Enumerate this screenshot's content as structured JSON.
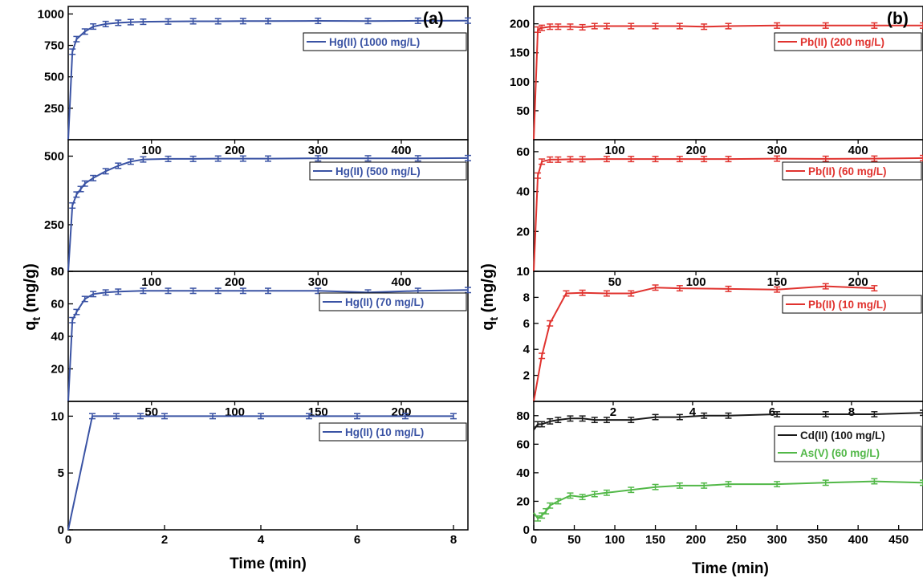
{
  "panels": [
    {
      "label": "(a)",
      "ylabel": "q",
      "ylabel_sub": "t",
      "ylabel_unit": " (mg/g)",
      "xlabel": "Time (min)"
    },
    {
      "label": "(b)",
      "ylabel": "q",
      "ylabel_sub": "t",
      "ylabel_unit": " (mg/g)",
      "xlabel": "Time (min)"
    }
  ],
  "chart_data": [
    {
      "type": "line",
      "panel": "a",
      "row": 1,
      "xlim": [
        0,
        480
      ],
      "ylim": [
        0,
        1060
      ],
      "yticks": [
        250,
        500,
        750,
        1000
      ],
      "xticks_top": [],
      "series": [
        {
          "name": "Hg(II) (1000 mg/L)",
          "color": "#3a53a4",
          "x": [
            0,
            5,
            10,
            20,
            30,
            45,
            60,
            75,
            90,
            120,
            150,
            180,
            210,
            240,
            300,
            360,
            420,
            480
          ],
          "y": [
            0,
            700,
            800,
            860,
            900,
            920,
            930,
            935,
            938,
            940,
            942,
            942,
            943,
            943,
            945,
            944,
            946,
            947
          ]
        }
      ]
    },
    {
      "type": "line",
      "panel": "a",
      "row": 2,
      "xlim": [
        0,
        480
      ],
      "ylim": [
        80,
        560
      ],
      "yticks": [
        80,
        250,
        500
      ],
      "xticks_top": [
        100,
        200,
        300,
        400
      ],
      "series": [
        {
          "name": "Hg(II) (500 mg/L)",
          "color": "#3a53a4",
          "x": [
            0,
            5,
            10,
            15,
            20,
            30,
            45,
            60,
            75,
            90,
            120,
            150,
            180,
            210,
            240,
            300,
            360,
            420,
            480
          ],
          "y": [
            80,
            320,
            360,
            380,
            400,
            420,
            445,
            465,
            480,
            488,
            490,
            490,
            491,
            491,
            491,
            492,
            492,
            492,
            493
          ]
        }
      ]
    },
    {
      "type": "line",
      "panel": "a",
      "row": 3,
      "xlim": [
        0,
        480
      ],
      "ylim": [
        0,
        80
      ],
      "yticks": [
        20,
        40,
        60,
        80
      ],
      "xticks_top": [
        100,
        200,
        300,
        400
      ],
      "series": [
        {
          "name": "Hg(II) (70 mg/L)",
          "color": "#3a53a4",
          "x": [
            0,
            5,
            10,
            20,
            30,
            45,
            60,
            90,
            120,
            150,
            180,
            210,
            240,
            300,
            360,
            420,
            480
          ],
          "y": [
            0,
            50,
            55,
            63,
            66,
            67,
            67.5,
            68,
            68,
            68,
            68,
            68,
            68,
            68,
            67,
            68,
            68.5
          ]
        }
      ]
    },
    {
      "type": "line",
      "panel": "a",
      "row": 4,
      "xlim": [
        0,
        8.3
      ],
      "ylim": [
        0,
        11.3
      ],
      "yticks": [
        0,
        5,
        10
      ],
      "xticks": [
        0,
        2,
        4,
        6,
        8
      ],
      "xticks_top": [
        50,
        100,
        150,
        200
      ],
      "xticks_top_max": 240,
      "series": [
        {
          "name": "Hg(II) (10 mg/L)",
          "color": "#3a53a4",
          "x": [
            0,
            0.5,
            1,
            1.5,
            2,
            3,
            4,
            5,
            6,
            7,
            8
          ],
          "y": [
            0,
            10,
            10,
            10,
            10,
            10,
            10,
            10,
            10,
            10,
            10
          ]
        }
      ]
    },
    {
      "type": "line",
      "panel": "b",
      "row": 1,
      "xlim": [
        0,
        480
      ],
      "ylim": [
        0,
        230
      ],
      "yticks": [
        50,
        100,
        150,
        200
      ],
      "xticks_top": [],
      "series": [
        {
          "name": "Pb(II) (200 mg/L)",
          "color": "#e0332f",
          "x": [
            0,
            5,
            10,
            20,
            30,
            45,
            60,
            75,
            90,
            120,
            150,
            180,
            210,
            240,
            300,
            360,
            420,
            480
          ],
          "y": [
            0,
            190,
            193,
            195,
            195,
            195,
            194,
            196,
            196,
            196,
            196,
            196,
            195,
            196,
            197,
            197,
            197,
            197
          ]
        }
      ]
    },
    {
      "type": "line",
      "panel": "b",
      "row": 2,
      "xlim": [
        0,
        480
      ],
      "ylim": [
        0,
        66
      ],
      "yticks": [
        20,
        40,
        60
      ],
      "xticks_top": [
        100,
        200,
        300,
        400
      ],
      "series": [
        {
          "name": "Pb(II) (60 mg/L)",
          "color": "#e0332f",
          "x": [
            0,
            5,
            10,
            20,
            30,
            45,
            60,
            90,
            120,
            150,
            180,
            210,
            240,
            300,
            360,
            420,
            480
          ],
          "y": [
            0,
            48,
            55,
            56,
            56,
            56.2,
            56.2,
            56.3,
            56.3,
            56.3,
            56.3,
            56.3,
            56.3,
            56.5,
            56.4,
            56.5,
            56.8
          ]
        }
      ]
    },
    {
      "type": "line",
      "panel": "b",
      "row": 3,
      "xlim": [
        0,
        240
      ],
      "ylim": [
        0,
        10
      ],
      "yticks": [
        2,
        4,
        6,
        8,
        10
      ],
      "xticks_top": [
        50,
        100,
        150,
        200
      ],
      "series": [
        {
          "name": "Pb(II) (10 mg/L)",
          "color": "#e0332f",
          "x": [
            0,
            5,
            10,
            20,
            30,
            45,
            60,
            75,
            90,
            120,
            150,
            180,
            210
          ],
          "y": [
            0,
            3.5,
            6,
            8.3,
            8.35,
            8.3,
            8.3,
            8.75,
            8.7,
            8.65,
            8.6,
            8.85,
            8.7
          ]
        }
      ]
    },
    {
      "type": "line",
      "panel": "b",
      "row": 4,
      "xlim": [
        0,
        480
      ],
      "ylim": [
        0,
        90
      ],
      "yticks": [
        0,
        20,
        40,
        60,
        80
      ],
      "xticks": [
        0,
        50,
        100,
        150,
        200,
        250,
        300,
        350,
        400,
        450
      ],
      "xticks_top": [
        2,
        4,
        6,
        8
      ],
      "xticks_top_max": 9.8,
      "series": [
        {
          "name": "Cd(II) (100 mg/L)",
          "color": "#1a1a1a",
          "x": [
            0,
            5,
            10,
            20,
            30,
            45,
            60,
            75,
            90,
            120,
            150,
            180,
            210,
            240,
            300,
            360,
            420,
            480
          ],
          "y": [
            70,
            74,
            74,
            76,
            77,
            78,
            78,
            77,
            77,
            77,
            79,
            79,
            80,
            80,
            81,
            81,
            81,
            82
          ]
        },
        {
          "name": "As(V) (60 mg/L)",
          "color": "#52b848",
          "x": [
            0,
            5,
            10,
            15,
            20,
            30,
            45,
            60,
            75,
            90,
            120,
            150,
            180,
            210,
            240,
            300,
            360,
            420,
            480
          ],
          "y": [
            12,
            8,
            10,
            13,
            17,
            20,
            24,
            23,
            25,
            26,
            28,
            30,
            31,
            31,
            32,
            32,
            33,
            34,
            33
          ]
        }
      ]
    }
  ]
}
